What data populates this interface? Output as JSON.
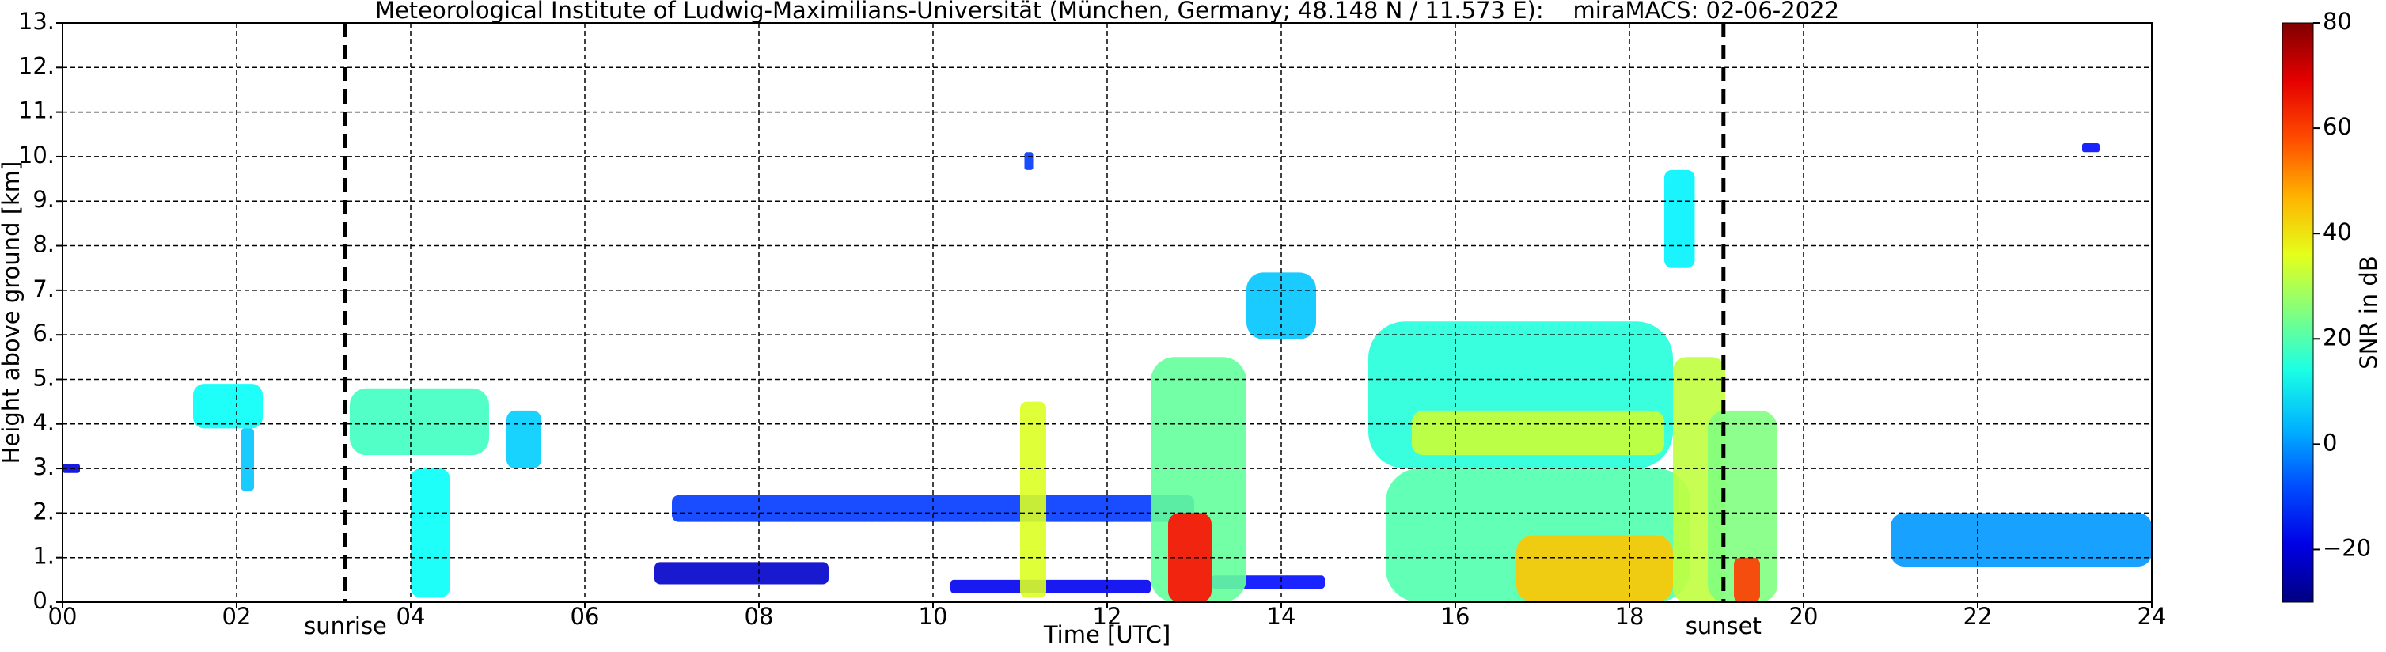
{
  "chart_data": {
    "type": "radar-time-height",
    "title": "Meteorological Institute of Ludwig-Maximilians-Universität (München, Germany; 48.148 N / 11.573 E):    miraMACS: 02-06-2022",
    "x_label": "Time [UTC]",
    "y_label": "Height above ground [km]",
    "colorbar_label": "SNR in dB",
    "colormap": "jet",
    "grid": true,
    "xlim": [
      0,
      24
    ],
    "ylim": [
      0,
      13
    ],
    "clim": [
      -30,
      80
    ],
    "xticks": [
      {
        "value": 0,
        "label": "00"
      },
      {
        "value": 2,
        "label": "02"
      },
      {
        "value": 4,
        "label": "04"
      },
      {
        "value": 6,
        "label": "06"
      },
      {
        "value": 8,
        "label": "08"
      },
      {
        "value": 10,
        "label": "10"
      },
      {
        "value": 12,
        "label": "12"
      },
      {
        "value": 14,
        "label": "14"
      },
      {
        "value": 16,
        "label": "16"
      },
      {
        "value": 18,
        "label": "18"
      },
      {
        "value": 20,
        "label": "20"
      },
      {
        "value": 22,
        "label": "22"
      },
      {
        "value": 24,
        "label": "24"
      }
    ],
    "yticks": [
      {
        "value": 0,
        "label": "0."
      },
      {
        "value": 1,
        "label": "1."
      },
      {
        "value": 2,
        "label": "2."
      },
      {
        "value": 3,
        "label": "3."
      },
      {
        "value": 4,
        "label": "4."
      },
      {
        "value": 5,
        "label": "5."
      },
      {
        "value": 6,
        "label": "6."
      },
      {
        "value": 7,
        "label": "7."
      },
      {
        "value": 8,
        "label": "8."
      },
      {
        "value": 9,
        "label": "9."
      },
      {
        "value": 10,
        "label": "10."
      },
      {
        "value": 11,
        "label": "11."
      },
      {
        "value": 12,
        "label": "12."
      },
      {
        "value": 13,
        "label": "13."
      }
    ],
    "cticks": [
      {
        "value": -20,
        "label": "−20"
      },
      0,
      20,
      40,
      60,
      80
    ],
    "markers": [
      {
        "label": "sunrise",
        "x": 3.25
      },
      {
        "label": "sunset",
        "x": 19.08
      }
    ],
    "echoes": [
      {
        "start": 1.5,
        "end": 2.3,
        "bottom": 3.9,
        "top": 4.9,
        "snr": 12
      },
      {
        "start": 2.05,
        "end": 2.2,
        "bottom": 2.5,
        "top": 3.9,
        "snr": 5
      },
      {
        "start": 0.0,
        "end": 0.2,
        "bottom": 2.9,
        "top": 3.1,
        "snr": -20
      },
      {
        "start": 3.3,
        "end": 4.9,
        "bottom": 3.3,
        "top": 4.8,
        "snr": 18
      },
      {
        "start": 4.0,
        "end": 4.45,
        "bottom": 0.1,
        "top": 3.0,
        "snr": 12
      },
      {
        "start": 5.1,
        "end": 5.5,
        "bottom": 3.0,
        "top": 4.3,
        "snr": 6
      },
      {
        "start": 7.0,
        "end": 13.0,
        "bottom": 1.8,
        "top": 2.4,
        "snr": -10
      },
      {
        "start": 6.8,
        "end": 8.8,
        "bottom": 0.4,
        "top": 0.9,
        "snr": -22
      },
      {
        "start": 10.2,
        "end": 12.5,
        "bottom": 0.2,
        "top": 0.5,
        "snr": -18
      },
      {
        "start": 13.2,
        "end": 14.5,
        "bottom": 0.3,
        "top": 0.6,
        "snr": -15
      },
      {
        "start": 11.0,
        "end": 11.3,
        "bottom": 0.1,
        "top": 4.5,
        "snr": 35
      },
      {
        "start": 11.05,
        "end": 11.15,
        "bottom": 9.7,
        "top": 10.1,
        "snr": -10
      },
      {
        "start": 12.5,
        "end": 13.6,
        "bottom": 0.0,
        "top": 5.5,
        "snr": 22
      },
      {
        "start": 12.7,
        "end": 13.2,
        "bottom": 0.0,
        "top": 2.0,
        "snr": 65
      },
      {
        "start": 13.6,
        "end": 14.4,
        "bottom": 5.9,
        "top": 7.4,
        "snr": 5
      },
      {
        "start": 15.0,
        "end": 18.5,
        "bottom": 3.0,
        "top": 6.3,
        "snr": 15
      },
      {
        "start": 15.5,
        "end": 18.4,
        "bottom": 3.3,
        "top": 4.3,
        "snr": 33
      },
      {
        "start": 15.2,
        "end": 18.7,
        "bottom": 0.0,
        "top": 3.0,
        "snr": 20
      },
      {
        "start": 16.7,
        "end": 18.5,
        "bottom": 0.0,
        "top": 1.5,
        "snr": 45
      },
      {
        "start": 18.5,
        "end": 19.1,
        "bottom": 0.0,
        "top": 5.5,
        "snr": 32
      },
      {
        "start": 18.9,
        "end": 19.7,
        "bottom": 0.0,
        "top": 4.3,
        "snr": 25
      },
      {
        "start": 19.2,
        "end": 19.5,
        "bottom": 0.0,
        "top": 1.0,
        "snr": 60
      },
      {
        "start": 18.4,
        "end": 18.75,
        "bottom": 7.5,
        "top": 9.7,
        "snr": 10
      },
      {
        "start": 23.2,
        "end": 23.4,
        "bottom": 10.1,
        "top": 10.3,
        "snr": -15
      },
      {
        "start": 21.0,
        "end": 24.0,
        "bottom": 0.8,
        "top": 2.0,
        "snr": 0
      }
    ]
  }
}
